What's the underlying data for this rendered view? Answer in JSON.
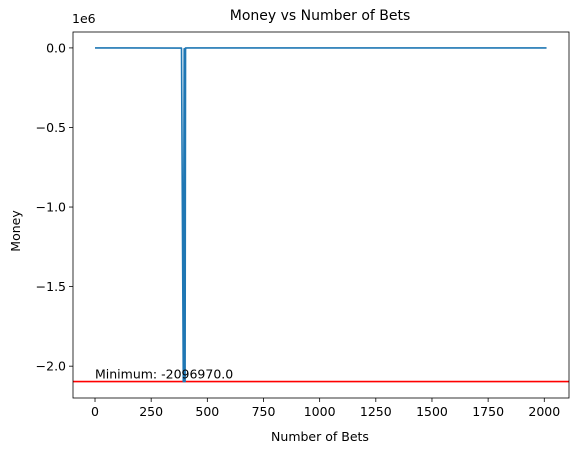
{
  "chart_data": {
    "type": "line",
    "title": "Money vs Number of Bets",
    "xlabel": "Number of Bets",
    "ylabel": "Money",
    "y_offset_label": "1e6",
    "xlim": [
      -98,
      2110
    ],
    "ylim": [
      -2200000,
      100000
    ],
    "x_ticks": [
      0,
      250,
      500,
      750,
      1000,
      1250,
      1500,
      1750,
      2000
    ],
    "x_tick_labels": [
      "0",
      "250",
      "500",
      "750",
      "1000",
      "1250",
      "1500",
      "1750",
      "2000"
    ],
    "y_ticks": [
      0,
      -500000,
      -1000000,
      -1500000,
      -2000000
    ],
    "y_tick_labels": [
      "0.0",
      "−0.5",
      "−1.0",
      "−1.5",
      "−2.0"
    ],
    "grid": false,
    "series": [
      {
        "color": "#1f77b4",
        "x": [
          0,
          385,
          393,
          397,
          399,
          401,
          403,
          405,
          407,
          2010
        ],
        "y": [
          0,
          -1000,
          -2096970,
          -5000,
          -2096970,
          -2096970,
          0,
          -3000,
          0,
          0
        ]
      }
    ],
    "reference_line": {
      "y": -2096970,
      "color": "#ff0000"
    },
    "annotation": {
      "text": "Minimum: -2096970.0",
      "x": 0,
      "y": -2096970
    },
    "colors": {
      "line": "#1f77b4",
      "minimum_line": "#ff0000"
    }
  }
}
